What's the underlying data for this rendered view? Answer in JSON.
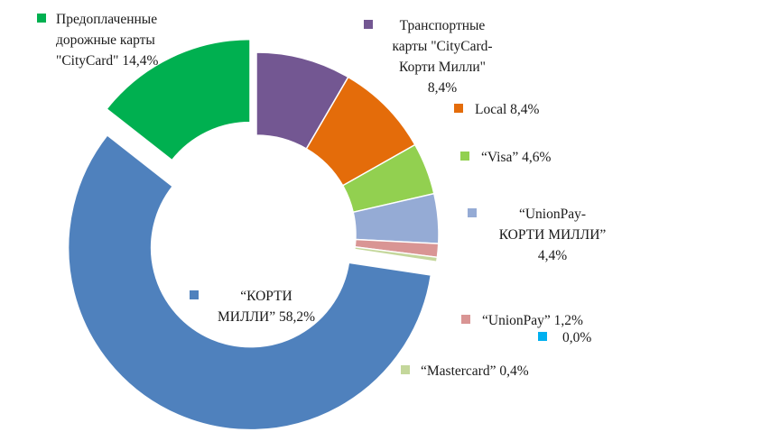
{
  "chart_data": {
    "type": "pie",
    "variant": "donut",
    "title": "",
    "slices": [
      {
        "name": "Транспортные карты \"CityCard-Корти Милли\"",
        "value": 8.4,
        "label_lines": [
          "Транспортные",
          "карты \"CityCard-",
          "Корти Милли\"",
          "8,4%"
        ],
        "color": "#735792"
      },
      {
        "name": "Local",
        "value": 8.4,
        "label_lines": [
          "Local 8,4%"
        ],
        "color": "#e46c0a"
      },
      {
        "name": "“Visa”",
        "value": 4.6,
        "label_lines": [
          "“Visa” 4,6%"
        ],
        "color": "#92d050"
      },
      {
        "name": "“UnionPay-КОРТИ МИЛЛИ”",
        "value": 4.4,
        "label_lines": [
          "“UnionPay-",
          "КОРТИ МИЛЛИ”",
          "4,4%"
        ],
        "color": "#95abd5"
      },
      {
        "name": "“UnionPay”",
        "value": 1.2,
        "label_lines": [
          "“UnionPay” 1,2%"
        ],
        "color": "#d99594"
      },
      {
        "name": "",
        "value": 0.0,
        "label_lines": [
          "0,0%"
        ],
        "color": "#00b0f0"
      },
      {
        "name": "“Mastercard”",
        "value": 0.4,
        "label_lines": [
          "“Mastercard” 0,4%"
        ],
        "color": "#c4d79b"
      },
      {
        "name": "“КОРТИ МИЛЛИ”",
        "value": 58.2,
        "label_lines": [
          "“КОРТИ",
          "МИЛЛИ” 58,2%"
        ],
        "color": "#4f81bd",
        "exploded": true
      },
      {
        "name": "Предоплаченные дорожные карты \"CityCard\"",
        "value": 14.4,
        "label_lines": [
          "Предоплаченные",
          "дорожные карты",
          "\"CityCard\" 14,4%"
        ],
        "color": "#00b050",
        "exploded": true
      }
    ]
  }
}
